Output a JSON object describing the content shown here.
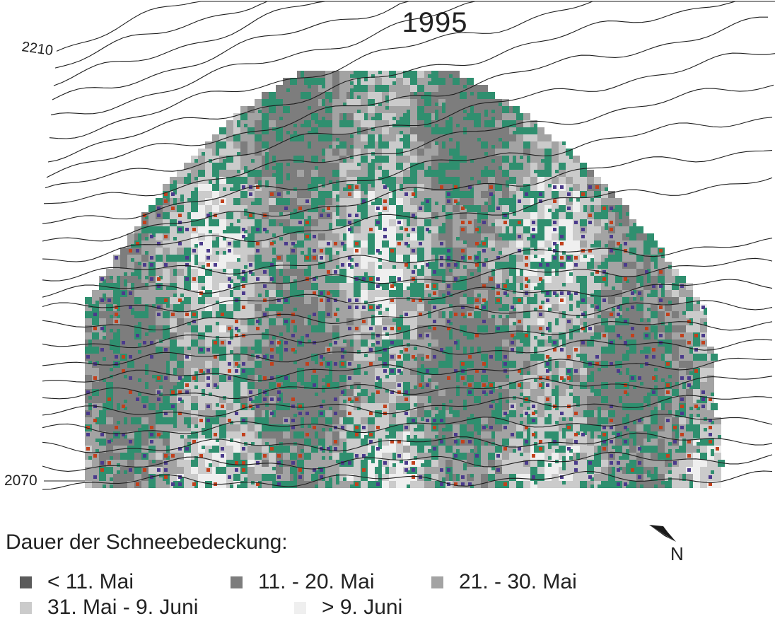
{
  "title": "1995",
  "contour_labels": {
    "top": "2210",
    "bottom": "2070"
  },
  "north_label": "N",
  "legend": {
    "title": "Dauer der Schneebedeckung:",
    "items": [
      {
        "label": "< 11. Mai",
        "color": "#5b5b5b"
      },
      {
        "label": "11. - 20. Mai",
        "color": "#7d7d7d"
      },
      {
        "label": "21. - 30. Mai",
        "color": "#a3a3a3"
      },
      {
        "label": "31. Mai - 9. Juni",
        "color": "#cbcbcb"
      },
      {
        "label": "> 9. Juni",
        "color": "#efefef"
      }
    ]
  },
  "overlay_colors": {
    "green": "#2f8f6f",
    "purple": "#4b3a8c",
    "red": "#c2401c"
  }
}
